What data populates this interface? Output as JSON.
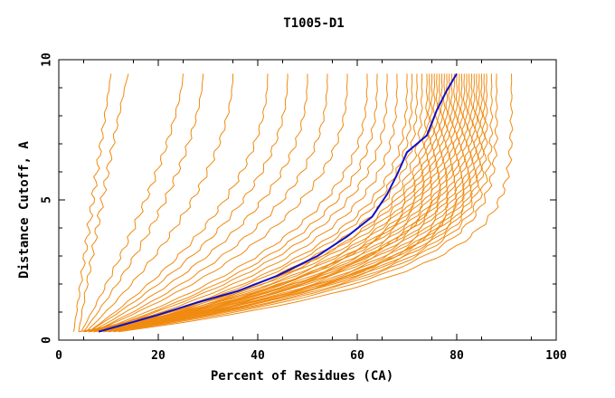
{
  "chart_data": {
    "type": "line",
    "title": "T1005-D1",
    "xlabel": "Percent of Residues (CA)",
    "ylabel": "Distance Cutoff, A",
    "xlim": [
      0,
      100
    ],
    "ylim": [
      0,
      10
    ],
    "x_ticks": [
      0,
      20,
      40,
      60,
      80,
      100
    ],
    "y_ticks": [
      0,
      5,
      10
    ],
    "x_tick_labels": [
      "0",
      "20",
      "40",
      "60",
      "80",
      "100"
    ],
    "y_tick_labels": [
      "0",
      "5",
      "10"
    ],
    "grid": false,
    "legend": "none",
    "colors": {
      "models": "#f08a10",
      "highlight": "#1010c8",
      "axes": "#000000"
    },
    "highlight_series": {
      "x": [
        8,
        12,
        20,
        28,
        36,
        44,
        52,
        58,
        63,
        66,
        68,
        70,
        72,
        74,
        76,
        78,
        80
      ],
      "y": [
        0.3,
        0.5,
        0.9,
        1.35,
        1.75,
        2.3,
        3.0,
        3.7,
        4.4,
        5.2,
        5.9,
        6.7,
        7.0,
        7.3,
        8.2,
        8.9,
        9.5
      ]
    },
    "model_series_shape": {
      "x_at_y_0_3": [
        3,
        4,
        4.5,
        5,
        5.5,
        6,
        6,
        6.5,
        7,
        7,
        7.5,
        8,
        8,
        8.5,
        9,
        9,
        9.5,
        10,
        5,
        6,
        7,
        8,
        9,
        10,
        6,
        7,
        8,
        9,
        10,
        11,
        4,
        5,
        6,
        7,
        8,
        9,
        10,
        11,
        5,
        6,
        7,
        8,
        9,
        10,
        11,
        12
      ],
      "x_at_y_9_5": [
        10.5,
        14,
        25,
        29,
        35,
        42,
        46,
        50,
        54,
        58,
        62,
        64,
        66,
        68,
        70,
        71,
        72,
        73,
        74,
        74.5,
        75,
        75.5,
        76,
        76.5,
        77,
        77.5,
        78,
        78.5,
        79,
        79.5,
        80,
        80.5,
        81,
        81.5,
        82,
        82.5,
        83,
        83.5,
        84,
        84.5,
        85,
        85.5,
        86,
        87,
        88,
        91
      ],
      "curvature": [
        1.0,
        0.9,
        1.4,
        1.6,
        1.8,
        2.0,
        2.1,
        2.2,
        2.3,
        2.4,
        2.6,
        2.7,
        2.8,
        2.9,
        3.0,
        3.1,
        3.2,
        3.3,
        3.4,
        3.5,
        3.6,
        3.6,
        3.7,
        3.7,
        3.8,
        3.8,
        3.9,
        3.9,
        4.0,
        4.0,
        4.1,
        4.1,
        4.2,
        4.2,
        4.3,
        4.3,
        4.4,
        4.4,
        4.5,
        4.5,
        4.6,
        4.6,
        4.7,
        4.7,
        4.8,
        4.9
      ]
    }
  }
}
